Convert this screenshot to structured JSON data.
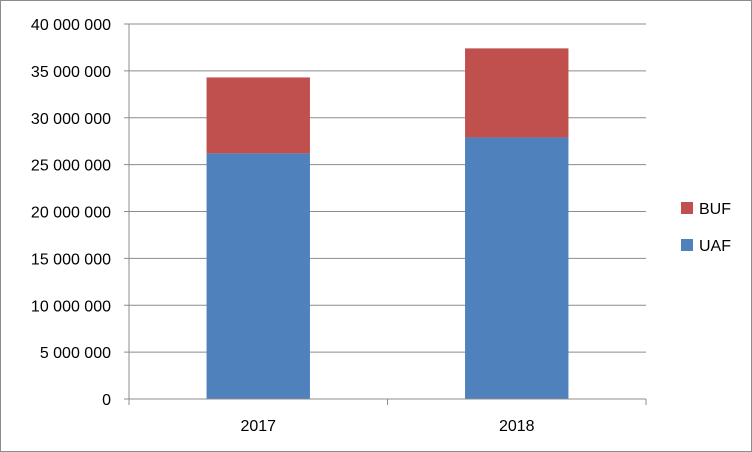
{
  "chart_data": {
    "type": "bar",
    "stacked": true,
    "title": "",
    "xlabel": "",
    "ylabel": "",
    "categories": [
      "2017",
      "2018"
    ],
    "series": [
      {
        "name": "UAF",
        "values": [
          26200000,
          27900000
        ],
        "color": "#4f81bd"
      },
      {
        "name": "BUF",
        "values": [
          8100000,
          9500000
        ],
        "color": "#c0504d"
      }
    ],
    "ylim": [
      0,
      40000000
    ],
    "ytick_step": 5000000,
    "ytick_labels": [
      "0",
      "5 000 000",
      "10 000 000",
      "15 000 000",
      "20 000 000",
      "25 000 000",
      "30 000 000",
      "35 000 000",
      "40 000 000"
    ],
    "grid": true,
    "legend": {
      "placement": "right",
      "order": [
        "BUF",
        "UAF"
      ]
    }
  }
}
